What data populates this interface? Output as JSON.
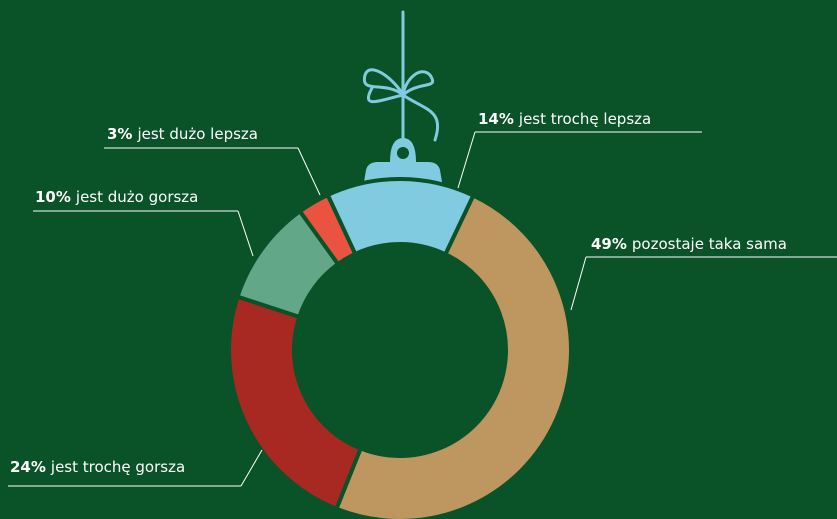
{
  "chart_data": {
    "type": "donut",
    "categories": [
      "jest trochę lepsza",
      "pozostaje taka sama",
      "jest trochę gorsza",
      "jest dużo gorsza",
      "jest dużo lepsza"
    ],
    "values": [
      14,
      49,
      24,
      10,
      3
    ],
    "value_labels": [
      "14%",
      "49%",
      "24%",
      "10%",
      "3%"
    ],
    "colors": [
      "#80cbe0",
      "#bd9660",
      "#a82822",
      "#62a888",
      "#e9533f"
    ]
  }
}
